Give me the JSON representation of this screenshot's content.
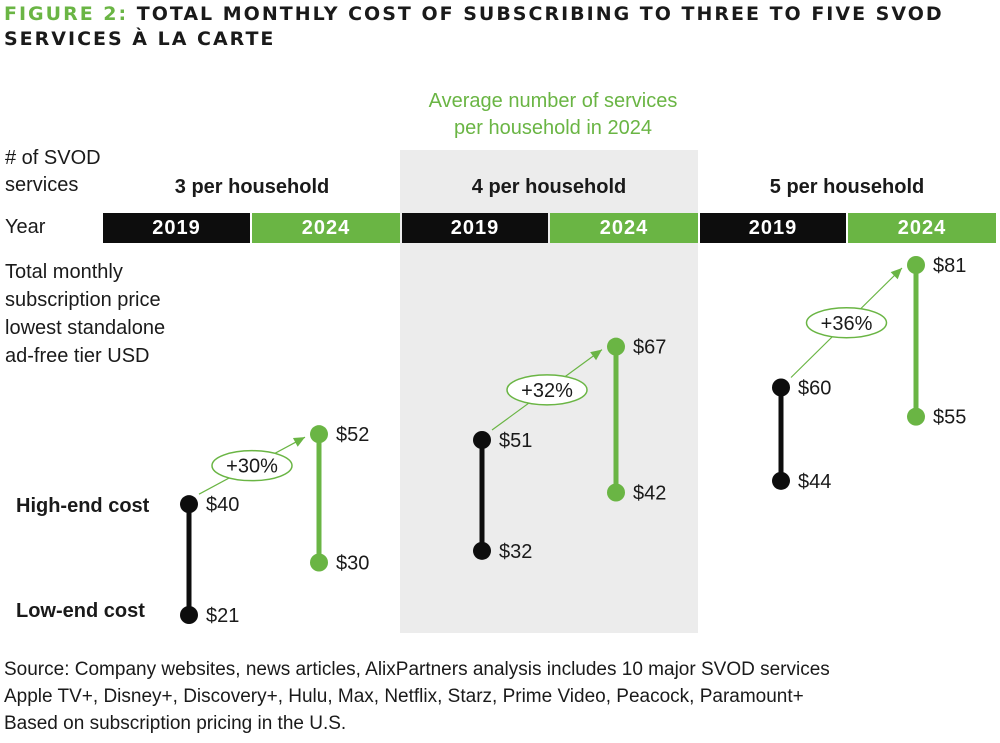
{
  "title": {
    "label": "FIGURE 2:",
    "text": "TOTAL MONTHLY COST OF SUBSCRIBING TO THREE TO FIVE SVOD SERVICES À LA CARTE"
  },
  "annotation": {
    "line1": "Average number of services",
    "line2": "per household in 2024"
  },
  "row_labels": {
    "services_line1": "# of SVOD",
    "services_line2": "services",
    "year": "Year",
    "price_line1": "Total monthly",
    "price_line2": "subscription price",
    "price_line3": "lowest standalone",
    "price_line4": "ad-free tier USD"
  },
  "cost_labels": {
    "high": "High-end cost",
    "low": "Low-end cost"
  },
  "colors": {
    "accent": "#6ab544",
    "dark": "#0d0d0d",
    "highlight_bg": "#ececec"
  },
  "chart_data": {
    "type": "range",
    "title": "Total monthly cost of subscribing to three to five SVOD services à la carte",
    "unit": "USD",
    "ylim": [
      21,
      81
    ],
    "groups": [
      {
        "label": "3 per household",
        "highlighted": false,
        "years": [
          {
            "year": "2019",
            "low": 21,
            "high": 40,
            "low_label": "$21",
            "high_label": "$40"
          },
          {
            "year": "2024",
            "low": 30,
            "high": 52,
            "low_label": "$30",
            "high_label": "$52"
          }
        ],
        "change_label": "+30%"
      },
      {
        "label": "4 per household",
        "highlighted": true,
        "years": [
          {
            "year": "2019",
            "low": 32,
            "high": 51,
            "low_label": "$32",
            "high_label": "$51"
          },
          {
            "year": "2024",
            "low": 42,
            "high": 67,
            "low_label": "$42",
            "high_label": "$67"
          }
        ],
        "change_label": "+32%"
      },
      {
        "label": "5 per household",
        "highlighted": false,
        "years": [
          {
            "year": "2019",
            "low": 44,
            "high": 60,
            "low_label": "$44",
            "high_label": "$60"
          },
          {
            "year": "2024",
            "low": 55,
            "high": 81,
            "low_label": "$55",
            "high_label": "$81"
          }
        ],
        "change_label": "+36%"
      }
    ]
  },
  "source": {
    "line1": "Source: Company websites, news articles, AlixPartners analysis includes 10 major SVOD services",
    "line2": "Apple TV+, Disney+, Discovery+, Hulu, Max, Netflix, Starz, Prime Video, Peacock, Paramount+",
    "line3": "Based on subscription pricing in the U.S."
  }
}
